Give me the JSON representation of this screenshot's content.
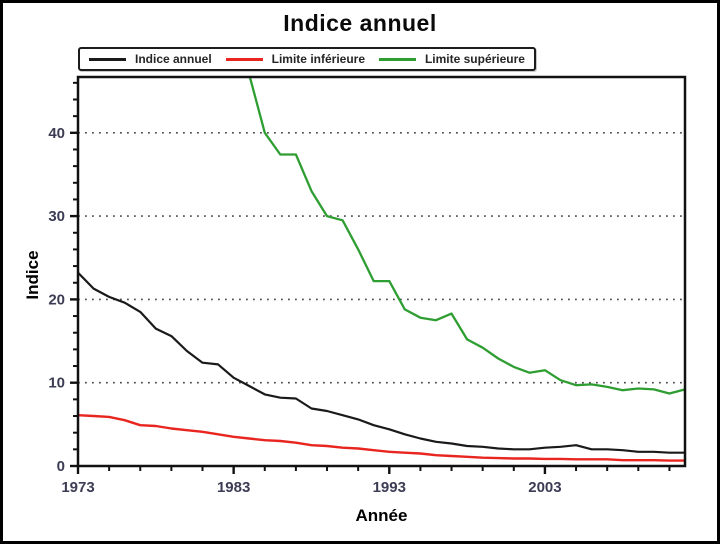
{
  "title": "Indice annuel",
  "legend": {
    "items": [
      {
        "label": "Indice annuel",
        "color": "#1a1a1a"
      },
      {
        "label": "Limite inférieure",
        "color": "#e8251f"
      },
      {
        "label": "Limite supérieure",
        "color": "#2f9e32"
      }
    ]
  },
  "chart_data": {
    "type": "line",
    "title": "Indice annuel",
    "xlabel": "Année",
    "ylabel": "Indice",
    "xlim": [
      1973,
      2012
    ],
    "ylim": [
      0,
      46.7
    ],
    "x_ticks_major": [
      1973,
      1983,
      1993,
      2003
    ],
    "x_minor_step": 2,
    "y_ticks_major": [
      0,
      10,
      20,
      30,
      40
    ],
    "y_minor_step": 2,
    "grid": "horizontal dotted lines at y = 10, 20, 30, 40",
    "legend_position": "top",
    "x": [
      1973,
      1974,
      1975,
      1976,
      1977,
      1978,
      1979,
      1980,
      1981,
      1982,
      1983,
      1984,
      1985,
      1986,
      1987,
      1988,
      1989,
      1990,
      1991,
      1992,
      1993,
      1994,
      1995,
      1996,
      1997,
      1998,
      1999,
      2000,
      2001,
      2002,
      2003,
      2004,
      2005,
      2006,
      2007,
      2008,
      2009,
      2010,
      2011,
      2012
    ],
    "series": [
      {
        "name": "Indice annuel",
        "color": "#1a1a1a",
        "width": 2.2,
        "values": [
          23.2,
          21.3,
          20.3,
          19.6,
          18.5,
          16.5,
          15.6,
          13.8,
          12.4,
          12.2,
          10.6,
          9.6,
          8.6,
          8.2,
          8.1,
          6.9,
          6.6,
          6.1,
          5.6,
          4.9,
          4.4,
          3.8,
          3.3,
          2.9,
          2.7,
          2.4,
          2.3,
          2.1,
          2.0,
          2.0,
          2.2,
          2.3,
          2.5,
          2.0,
          2.0,
          1.9,
          1.7,
          1.7,
          1.6,
          1.6
        ]
      },
      {
        "name": "Limite inférieure",
        "color": "#e8251f",
        "width": 2.4,
        "values": [
          6.1,
          6.0,
          5.9,
          5.5,
          4.9,
          4.8,
          4.5,
          4.3,
          4.1,
          3.8,
          3.5,
          3.3,
          3.1,
          3.0,
          2.8,
          2.5,
          2.4,
          2.2,
          2.1,
          1.9,
          1.7,
          1.6,
          1.5,
          1.3,
          1.2,
          1.1,
          1.0,
          0.95,
          0.9,
          0.9,
          0.85,
          0.85,
          0.8,
          0.8,
          0.8,
          0.7,
          0.7,
          0.7,
          0.65,
          0.65
        ]
      },
      {
        "name": "Limite supérieure",
        "color": "#2f9e32",
        "width": 2.3,
        "values": [
          null,
          null,
          null,
          null,
          null,
          null,
          null,
          null,
          null,
          null,
          null,
          47,
          40,
          37.4,
          37.4,
          33,
          30,
          29.5,
          26,
          22.2,
          22.2,
          18.8,
          17.8,
          17.5,
          18.3,
          15.2,
          14.2,
          12.9,
          11.9,
          11.2,
          11.5,
          10.3,
          9.7,
          9.8,
          9.5,
          9.1,
          9.3,
          9.2,
          8.7,
          9.2
        ]
      }
    ]
  }
}
